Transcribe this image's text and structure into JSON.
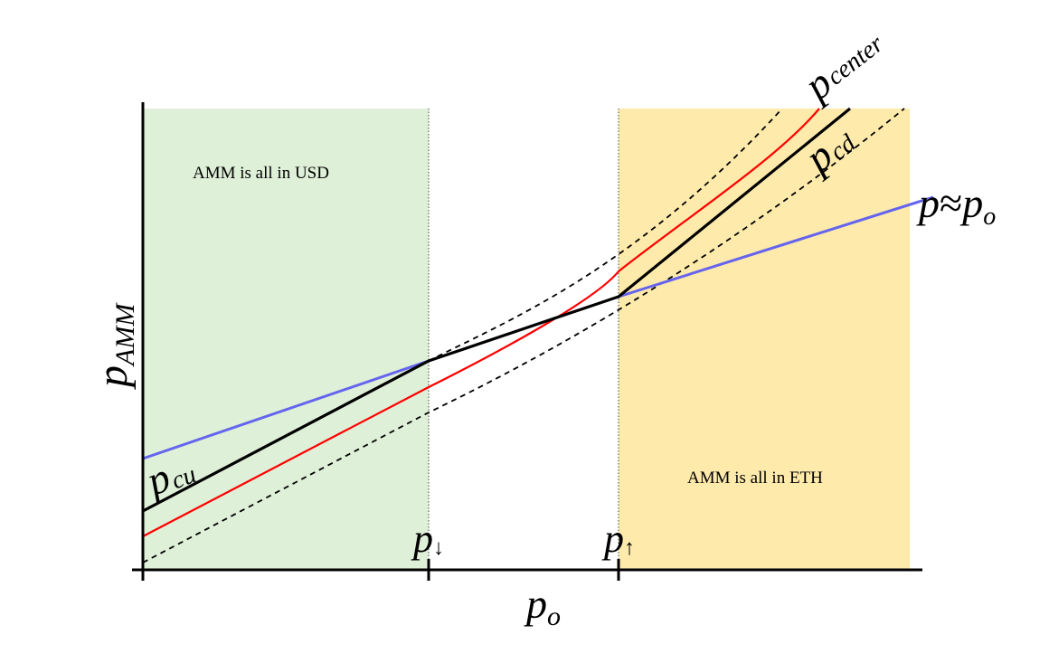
{
  "colors": {
    "usd_region": "#dff0d8",
    "eth_region": "#feeaab",
    "center_curve": "#ff0000",
    "oracle_line": "#6464ee",
    "amm_curve": "#000000",
    "band_curves": "#000000"
  },
  "regions": {
    "left_note": "AMM is all in USD",
    "right_note": "AMM is all in ETH"
  },
  "axes": {
    "x_label": {
      "main": "p",
      "sub": "o"
    },
    "y_label": {
      "main": "p",
      "sub": "AMM"
    }
  },
  "ticks": {
    "lower": {
      "main": "p",
      "sub": "↓"
    },
    "upper": {
      "main": "p",
      "sub": "↑"
    }
  },
  "curve_labels": {
    "center": {
      "main": "p",
      "sub": "center"
    },
    "cd": {
      "main": "p",
      "sub": "cd"
    },
    "cu": {
      "main": "p",
      "sub": "cu"
    },
    "oracle": {
      "lhs": "p",
      "rel": "≈",
      "rhs_main": "p",
      "rhs_sub": "o"
    }
  }
}
